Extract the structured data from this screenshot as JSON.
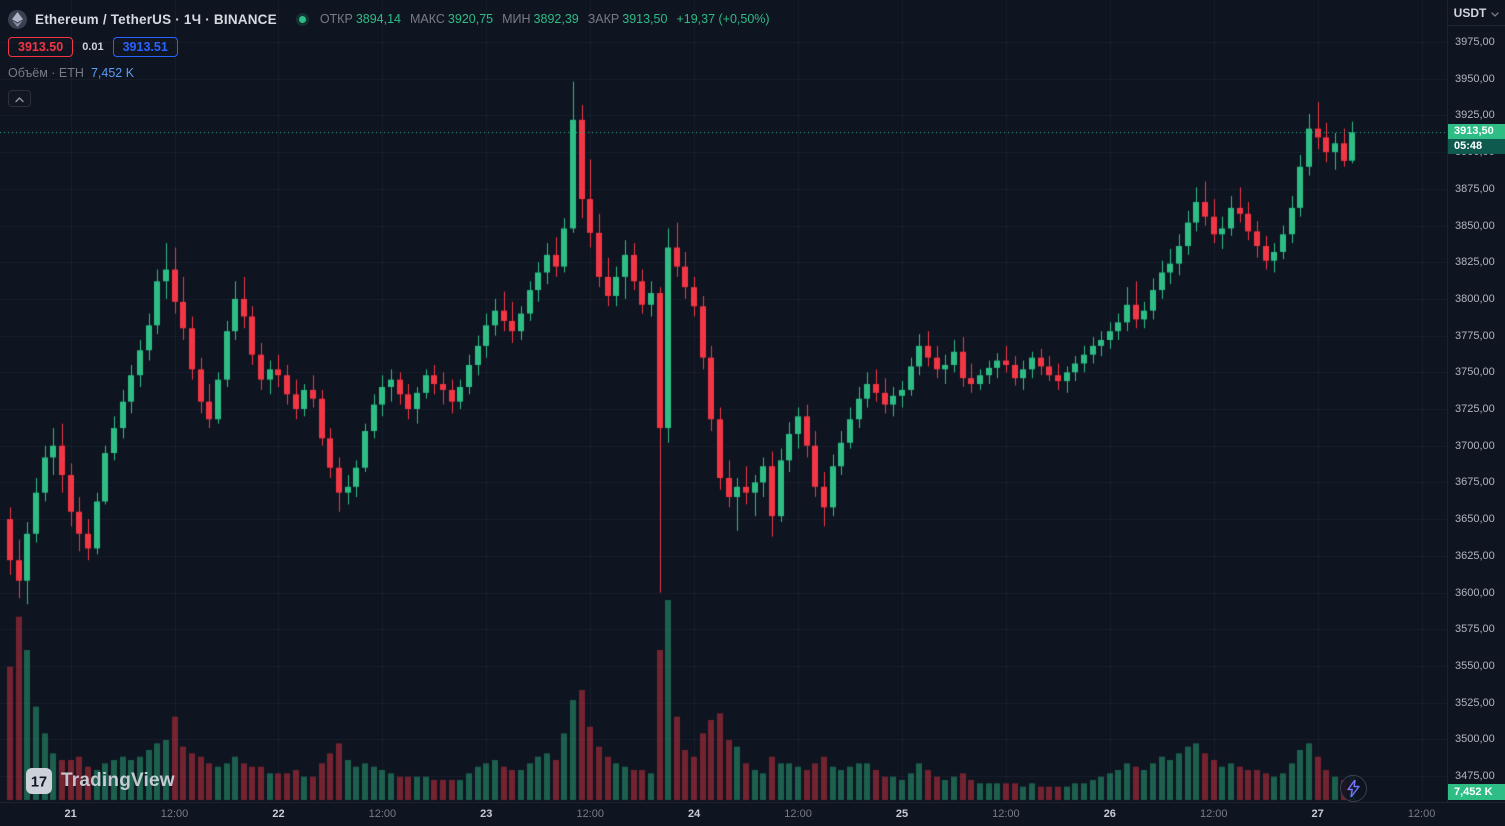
{
  "header": {
    "symbol_title": "Ethereum / TetherUS · 1Ч · BINANCE",
    "ohlc": {
      "open_label": "ОТКР",
      "open": "3894,14",
      "high_label": "МАКС",
      "high": "3920,75",
      "low_label": "МИН",
      "low": "3892,39",
      "close_label": "ЗАКР",
      "close": "3913,50",
      "change": "+19,37 (+0,50%)"
    },
    "sell_price": "3913.50",
    "spread": "0.01",
    "buy_price": "3913.51",
    "volume_label": "Объём · ETH",
    "volume_value": "7,452 K"
  },
  "axis": {
    "currency": "USDT",
    "price_tag": {
      "price": "3913,50",
      "countdown": "05:48"
    },
    "volume_tag": "7,452 K"
  },
  "footer": {
    "logo_text": "TradingView",
    "logo_mark": "17"
  },
  "colors": {
    "background": "#0e1420",
    "grid": "rgba(160,172,200,0.07)",
    "up": "#2ebd85",
    "down": "#f23645",
    "volume_up": "rgba(46,189,133,0.45)",
    "volume_down": "rgba(242,54,69,0.45)",
    "axis_text": "#b2b5be",
    "muted_text": "#787b86",
    "title_text": "#d6d9e0",
    "buy_blue": "#2962ff",
    "countdown_bg": "#0e5a4e",
    "volume_value_blue": "#5b9cf6",
    "accent_purple": "#9c6bff"
  },
  "chart_data": {
    "type": "candlestick+volume",
    "symbol": "ETHUSDT",
    "exchange": "BINANCE",
    "interval": "1h",
    "title": "Ethereum / TetherUS 1H BINANCE",
    "ylim": [
      3475,
      3975
    ],
    "price_line": 3913.5,
    "last_countdown": "05:48",
    "last_volume_k": 7.452,
    "volume_unit": "K ETH",
    "y_ticks": [
      {
        "v": 3975,
        "label": "3975,00"
      },
      {
        "v": 3950,
        "label": "3950,00"
      },
      {
        "v": 3925,
        "label": "3925,00"
      },
      {
        "v": 3900,
        "label": "3900,00"
      },
      {
        "v": 3875,
        "label": "3875,00"
      },
      {
        "v": 3850,
        "label": "3850,00"
      },
      {
        "v": 3825,
        "label": "3825,00"
      },
      {
        "v": 3800,
        "label": "3800,00"
      },
      {
        "v": 3775,
        "label": "3775,00"
      },
      {
        "v": 3750,
        "label": "3750,00"
      },
      {
        "v": 3725,
        "label": "3725,00"
      },
      {
        "v": 3700,
        "label": "3700,00"
      },
      {
        "v": 3675,
        "label": "3675,00"
      },
      {
        "v": 3650,
        "label": "3650,00"
      },
      {
        "v": 3625,
        "label": "3625,00"
      },
      {
        "v": 3600,
        "label": "3600,00"
      },
      {
        "v": 3575,
        "label": "3575,00"
      },
      {
        "v": 3550,
        "label": "3550,00"
      },
      {
        "v": 3525,
        "label": "3525,00"
      },
      {
        "v": 3500,
        "label": "3500,00"
      },
      {
        "v": 3475,
        "label": "3475,00"
      }
    ],
    "x_ticks": [
      {
        "label": "21",
        "index": 7,
        "major": true
      },
      {
        "label": "12:00",
        "index": 19,
        "major": false
      },
      {
        "label": "22",
        "index": 31,
        "major": true
      },
      {
        "label": "12:00",
        "index": 43,
        "major": false
      },
      {
        "label": "23",
        "index": 55,
        "major": true
      },
      {
        "label": "12:00",
        "index": 67,
        "major": false
      },
      {
        "label": "24",
        "index": 79,
        "major": true
      },
      {
        "label": "12:00",
        "index": 91,
        "major": false
      },
      {
        "label": "25",
        "index": 103,
        "major": true
      },
      {
        "label": "12:00",
        "index": 115,
        "major": false
      },
      {
        "label": "26",
        "index": 127,
        "major": true
      },
      {
        "label": "12:00",
        "index": 139,
        "major": false
      },
      {
        "label": "27",
        "index": 151,
        "major": true
      },
      {
        "label": "12:00",
        "index": 163,
        "major": false
      }
    ],
    "candles_format": [
      "open",
      "high",
      "low",
      "close",
      "volume_k"
    ],
    "candles": [
      [
        3650,
        3658,
        3612,
        3622,
        40
      ],
      [
        3622,
        3636,
        3596,
        3608,
        55
      ],
      [
        3608,
        3648,
        3592,
        3640,
        45
      ],
      [
        3640,
        3678,
        3634,
        3668,
        28
      ],
      [
        3668,
        3700,
        3662,
        3692,
        20
      ],
      [
        3692,
        3712,
        3680,
        3700,
        14
      ],
      [
        3700,
        3715,
        3668,
        3680,
        12
      ],
      [
        3680,
        3688,
        3645,
        3655,
        12
      ],
      [
        3655,
        3665,
        3628,
        3640,
        13
      ],
      [
        3640,
        3650,
        3622,
        3630,
        10
      ],
      [
        3630,
        3668,
        3626,
        3662,
        9
      ],
      [
        3662,
        3700,
        3660,
        3695,
        11
      ],
      [
        3695,
        3720,
        3690,
        3712,
        12
      ],
      [
        3712,
        3738,
        3705,
        3730,
        13
      ],
      [
        3730,
        3755,
        3722,
        3748,
        12
      ],
      [
        3748,
        3772,
        3740,
        3765,
        13
      ],
      [
        3765,
        3790,
        3758,
        3782,
        15
      ],
      [
        3782,
        3820,
        3776,
        3812,
        17
      ],
      [
        3812,
        3838,
        3800,
        3820,
        18
      ],
      [
        3820,
        3835,
        3790,
        3798,
        25
      ],
      [
        3798,
        3815,
        3772,
        3780,
        16
      ],
      [
        3780,
        3788,
        3745,
        3752,
        14
      ],
      [
        3752,
        3760,
        3722,
        3730,
        13
      ],
      [
        3730,
        3742,
        3712,
        3718,
        11
      ],
      [
        3718,
        3750,
        3715,
        3745,
        10
      ],
      [
        3745,
        3785,
        3740,
        3778,
        11
      ],
      [
        3778,
        3812,
        3772,
        3800,
        13
      ],
      [
        3800,
        3815,
        3780,
        3788,
        11
      ],
      [
        3788,
        3795,
        3755,
        3762,
        10
      ],
      [
        3762,
        3770,
        3738,
        3745,
        10
      ],
      [
        3745,
        3758,
        3735,
        3752,
        8
      ],
      [
        3752,
        3762,
        3740,
        3748,
        8
      ],
      [
        3748,
        3755,
        3728,
        3735,
        8
      ],
      [
        3735,
        3745,
        3718,
        3725,
        9
      ],
      [
        3725,
        3742,
        3720,
        3738,
        7
      ],
      [
        3738,
        3748,
        3726,
        3732,
        7
      ],
      [
        3732,
        3738,
        3700,
        3705,
        11
      ],
      [
        3705,
        3712,
        3678,
        3685,
        14
      ],
      [
        3685,
        3692,
        3655,
        3668,
        17
      ],
      [
        3668,
        3680,
        3660,
        3672,
        12
      ],
      [
        3672,
        3690,
        3665,
        3685,
        10
      ],
      [
        3685,
        3715,
        3682,
        3710,
        11
      ],
      [
        3710,
        3735,
        3705,
        3728,
        10
      ],
      [
        3728,
        3748,
        3720,
        3740,
        9
      ],
      [
        3740,
        3752,
        3730,
        3745,
        8
      ],
      [
        3745,
        3750,
        3728,
        3735,
        7
      ],
      [
        3735,
        3742,
        3718,
        3725,
        7
      ],
      [
        3725,
        3740,
        3715,
        3736,
        7
      ],
      [
        3736,
        3752,
        3732,
        3748,
        7
      ],
      [
        3748,
        3755,
        3735,
        3742,
        6
      ],
      [
        3742,
        3750,
        3728,
        3738,
        6
      ],
      [
        3738,
        3745,
        3722,
        3730,
        6
      ],
      [
        3730,
        3745,
        3725,
        3740,
        6
      ],
      [
        3740,
        3762,
        3735,
        3755,
        8
      ],
      [
        3755,
        3775,
        3748,
        3768,
        10
      ],
      [
        3768,
        3790,
        3760,
        3782,
        11
      ],
      [
        3782,
        3800,
        3775,
        3792,
        12
      ],
      [
        3792,
        3805,
        3778,
        3785,
        10
      ],
      [
        3785,
        3798,
        3770,
        3778,
        9
      ],
      [
        3778,
        3795,
        3772,
        3790,
        9
      ],
      [
        3790,
        3812,
        3785,
        3806,
        11
      ],
      [
        3806,
        3825,
        3798,
        3818,
        13
      ],
      [
        3818,
        3838,
        3810,
        3830,
        14
      ],
      [
        3830,
        3842,
        3815,
        3822,
        12
      ],
      [
        3822,
        3855,
        3818,
        3848,
        20
      ],
      [
        3848,
        3948,
        3845,
        3922,
        30
      ],
      [
        3922,
        3932,
        3855,
        3868,
        33
      ],
      [
        3868,
        3895,
        3835,
        3845,
        22
      ],
      [
        3845,
        3858,
        3808,
        3815,
        16
      ],
      [
        3815,
        3828,
        3795,
        3802,
        13
      ],
      [
        3802,
        3822,
        3795,
        3815,
        11
      ],
      [
        3815,
        3840,
        3800,
        3830,
        10
      ],
      [
        3830,
        3838,
        3806,
        3812,
        9
      ],
      [
        3812,
        3820,
        3790,
        3796,
        9
      ],
      [
        3796,
        3812,
        3788,
        3804,
        8
      ],
      [
        3804,
        3808,
        3600,
        3712,
        45
      ],
      [
        3712,
        3848,
        3702,
        3835,
        60
      ],
      [
        3835,
        3852,
        3815,
        3822,
        25
      ],
      [
        3822,
        3832,
        3800,
        3808,
        15
      ],
      [
        3808,
        3815,
        3788,
        3795,
        13
      ],
      [
        3795,
        3802,
        3752,
        3760,
        20
      ],
      [
        3760,
        3768,
        3710,
        3718,
        24
      ],
      [
        3718,
        3726,
        3670,
        3678,
        26
      ],
      [
        3678,
        3690,
        3658,
        3665,
        18
      ],
      [
        3665,
        3678,
        3642,
        3672,
        16
      ],
      [
        3672,
        3686,
        3660,
        3668,
        11
      ],
      [
        3668,
        3680,
        3652,
        3675,
        9
      ],
      [
        3675,
        3692,
        3665,
        3686,
        8
      ],
      [
        3686,
        3696,
        3638,
        3652,
        13
      ],
      [
        3652,
        3698,
        3648,
        3690,
        11
      ],
      [
        3690,
        3716,
        3682,
        3708,
        11
      ],
      [
        3708,
        3726,
        3698,
        3720,
        10
      ],
      [
        3720,
        3728,
        3692,
        3700,
        9
      ],
      [
        3700,
        3710,
        3665,
        3672,
        11
      ],
      [
        3672,
        3682,
        3645,
        3658,
        13
      ],
      [
        3658,
        3694,
        3652,
        3686,
        10
      ],
      [
        3686,
        3710,
        3680,
        3702,
        9
      ],
      [
        3702,
        3726,
        3698,
        3718,
        10
      ],
      [
        3718,
        3740,
        3712,
        3732,
        11
      ],
      [
        3732,
        3750,
        3726,
        3742,
        11
      ],
      [
        3742,
        3752,
        3730,
        3736,
        9
      ],
      [
        3736,
        3746,
        3722,
        3728,
        7
      ],
      [
        3728,
        3740,
        3720,
        3734,
        7
      ],
      [
        3734,
        3744,
        3726,
        3738,
        6
      ],
      [
        3738,
        3760,
        3734,
        3754,
        8
      ],
      [
        3754,
        3776,
        3748,
        3768,
        11
      ],
      [
        3768,
        3778,
        3754,
        3760,
        9
      ],
      [
        3760,
        3768,
        3746,
        3752,
        7
      ],
      [
        3752,
        3762,
        3742,
        3755,
        6
      ],
      [
        3755,
        3772,
        3750,
        3764,
        7
      ],
      [
        3764,
        3774,
        3740,
        3746,
        8
      ],
      [
        3746,
        3756,
        3736,
        3742,
        6
      ],
      [
        3742,
        3752,
        3738,
        3748,
        5
      ],
      [
        3748,
        3758,
        3742,
        3753,
        5
      ],
      [
        3753,
        3763,
        3746,
        3758,
        5
      ],
      [
        3758,
        3768,
        3750,
        3755,
        5
      ],
      [
        3755,
        3761,
        3741,
        3746,
        5
      ],
      [
        3746,
        3758,
        3738,
        3752,
        4
      ],
      [
        3752,
        3764,
        3746,
        3760,
        5
      ],
      [
        3760,
        3766,
        3748,
        3754,
        4
      ],
      [
        3754,
        3761,
        3744,
        3748,
        4
      ],
      [
        3748,
        3756,
        3738,
        3744,
        4
      ],
      [
        3744,
        3754,
        3736,
        3750,
        4
      ],
      [
        3750,
        3761,
        3744,
        3756,
        5
      ],
      [
        3756,
        3768,
        3750,
        3762,
        5
      ],
      [
        3762,
        3774,
        3756,
        3768,
        6
      ],
      [
        3768,
        3778,
        3761,
        3772,
        7
      ],
      [
        3772,
        3784,
        3766,
        3778,
        8
      ],
      [
        3778,
        3790,
        3772,
        3784,
        9
      ],
      [
        3784,
        3808,
        3778,
        3796,
        11
      ],
      [
        3796,
        3812,
        3780,
        3786,
        10
      ],
      [
        3786,
        3798,
        3780,
        3792,
        9
      ],
      [
        3792,
        3814,
        3786,
        3806,
        11
      ],
      [
        3806,
        3826,
        3800,
        3818,
        13
      ],
      [
        3818,
        3834,
        3810,
        3824,
        12
      ],
      [
        3824,
        3844,
        3816,
        3836,
        14
      ],
      [
        3836,
        3860,
        3830,
        3852,
        16
      ],
      [
        3852,
        3876,
        3846,
        3866,
        17
      ],
      [
        3866,
        3880,
        3850,
        3856,
        14
      ],
      [
        3856,
        3868,
        3838,
        3844,
        12
      ],
      [
        3844,
        3856,
        3834,
        3848,
        10
      ],
      [
        3848,
        3870,
        3843,
        3862,
        11
      ],
      [
        3862,
        3876,
        3852,
        3858,
        10
      ],
      [
        3858,
        3866,
        3840,
        3846,
        9
      ],
      [
        3846,
        3853,
        3828,
        3836,
        9
      ],
      [
        3836,
        3843,
        3820,
        3826,
        8
      ],
      [
        3826,
        3838,
        3818,
        3832,
        7
      ],
      [
        3832,
        3850,
        3827,
        3844,
        8
      ],
      [
        3844,
        3870,
        3838,
        3862,
        11
      ],
      [
        3862,
        3898,
        3856,
        3890,
        15
      ],
      [
        3890,
        3926,
        3884,
        3916,
        17
      ],
      [
        3916,
        3934,
        3902,
        3910,
        13
      ],
      [
        3910,
        3920,
        3893,
        3900,
        9
      ],
      [
        3900,
        3913,
        3888,
        3906,
        7
      ],
      [
        3906,
        3916,
        3890,
        3894,
        6
      ],
      [
        3894.14,
        3920.75,
        3892.39,
        3913.5,
        7.45
      ]
    ]
  }
}
